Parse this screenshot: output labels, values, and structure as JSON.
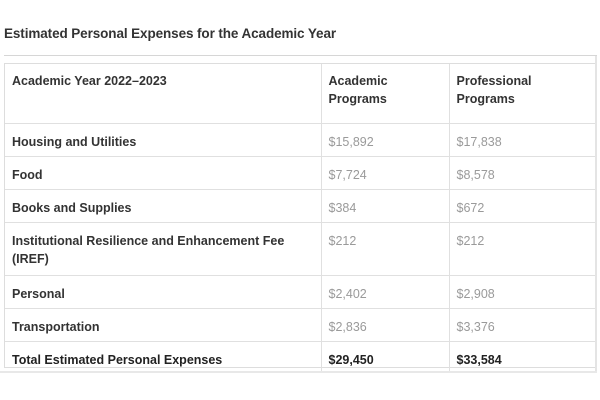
{
  "page": {
    "title": "Estimated Personal Expenses for the Academic Year"
  },
  "table": {
    "columns": [
      "Academic Year 2022–2023",
      "Academic Programs",
      "Professional Programs"
    ],
    "rows": [
      {
        "label": "Housing and Utilities",
        "academic": "$15,892",
        "professional": "$17,838"
      },
      {
        "label": "Food",
        "academic": "$7,724",
        "professional": "$8,578"
      },
      {
        "label": "Books and Supplies",
        "academic": "$384",
        "professional": "$672"
      },
      {
        "label": "Institutional Resilience and Enhancement Fee (IREF)",
        "academic": "$212",
        "professional": "$212"
      },
      {
        "label": "Personal",
        "academic": "$2,402",
        "professional": "$2,908"
      },
      {
        "label": "Transportation",
        "academic": "$2,836",
        "professional": "$3,376"
      }
    ],
    "total": {
      "label": "Total Estimated Personal Expenses",
      "academic": "$29,450",
      "professional": "$33,584"
    }
  },
  "colors": {
    "heading_text": "#333333",
    "value_text": "#9a9a9a",
    "total_text": "#222222",
    "border": "#e0e0e0"
  }
}
